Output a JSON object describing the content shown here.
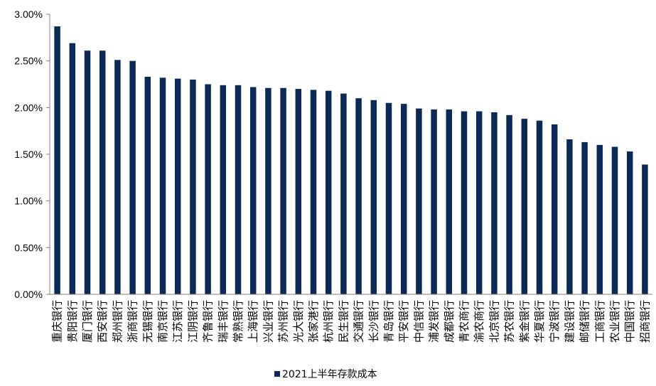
{
  "chart_data": {
    "type": "bar",
    "categories": [
      "重庆银行",
      "贵阳银行",
      "厦门银行",
      "西安银行",
      "郑州银行",
      "浙商银行",
      "无锡银行",
      "南京银行",
      "江苏银行",
      "江阴银行",
      "齐鲁银行",
      "瑞丰银行",
      "常熟银行",
      "上海银行",
      "兴业银行",
      "苏州银行",
      "光大银行",
      "张家港行",
      "杭州银行",
      "民生银行",
      "交通银行",
      "长沙银行",
      "青岛银行",
      "平安银行",
      "中信银行",
      "浦发银行",
      "成都银行",
      "青农商行",
      "渝农商行",
      "北京银行",
      "苏农银行",
      "紫金银行",
      "华夏银行",
      "宁波银行",
      "建设银行",
      "邮储银行",
      "工商银行",
      "农业银行",
      "中国银行",
      "招商银行"
    ],
    "series": [
      {
        "name": "2021上半年存款成本",
        "values": [
          2.87,
          2.69,
          2.61,
          2.61,
          2.51,
          2.5,
          2.33,
          2.32,
          2.31,
          2.3,
          2.25,
          2.24,
          2.24,
          2.22,
          2.21,
          2.21,
          2.2,
          2.19,
          2.18,
          2.15,
          2.1,
          2.08,
          2.05,
          2.04,
          1.99,
          1.98,
          1.98,
          1.96,
          1.96,
          1.95,
          1.92,
          1.88,
          1.86,
          1.82,
          1.66,
          1.63,
          1.6,
          1.58,
          1.53,
          1.39
        ]
      }
    ],
    "ylim": [
      0,
      3.0
    ],
    "yticks": [
      "0.00%",
      "0.50%",
      "1.00%",
      "1.50%",
      "2.00%",
      "2.50%",
      "3.00%"
    ],
    "grid": false,
    "legend_position": "bottom",
    "colors": {
      "bar": "#0d2a56",
      "axis": "#808080"
    }
  }
}
